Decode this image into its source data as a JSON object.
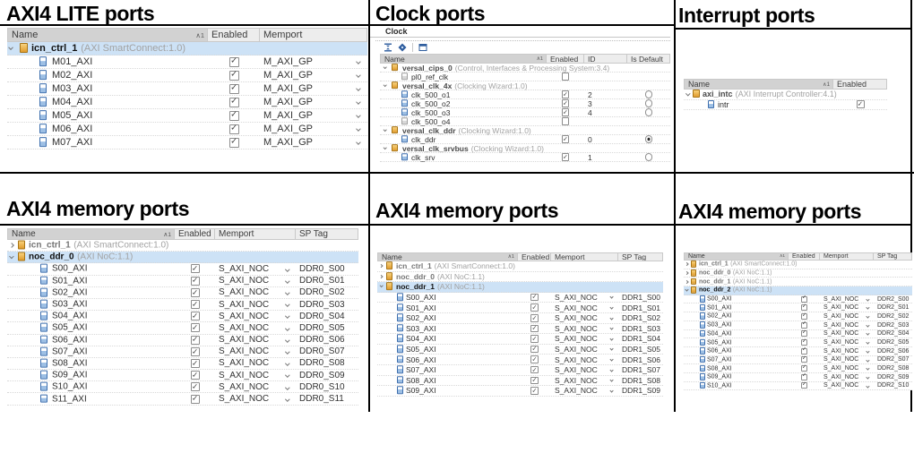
{
  "panels": {
    "lite": {
      "title": "AXI4 LITE ports",
      "columns": [
        "Name",
        "Enabled",
        "Memport"
      ],
      "sort_indicator": "∧1",
      "rows": [
        {
          "type": "group",
          "name": "icn_ctrl_1",
          "detail": "(AXI SmartConnect:1.0)",
          "expanded": true,
          "selected": true
        },
        {
          "type": "port",
          "name": "M01_AXI",
          "enabled": true,
          "memport": "M_AXI_GP"
        },
        {
          "type": "port",
          "name": "M02_AXI",
          "enabled": true,
          "memport": "M_AXI_GP"
        },
        {
          "type": "port",
          "name": "M03_AXI",
          "enabled": true,
          "memport": "M_AXI_GP"
        },
        {
          "type": "port",
          "name": "M04_AXI",
          "enabled": true,
          "memport": "M_AXI_GP"
        },
        {
          "type": "port",
          "name": "M05_AXI",
          "enabled": true,
          "memport": "M_AXI_GP"
        },
        {
          "type": "port",
          "name": "M06_AXI",
          "enabled": true,
          "memport": "M_AXI_GP"
        },
        {
          "type": "port",
          "name": "M07_AXI",
          "enabled": true,
          "memport": "M_AXI_GP"
        }
      ]
    },
    "clock": {
      "title": "Clock ports",
      "tab": "Clock",
      "toolbar_icons": [
        "collapse-all",
        "expand-all",
        "open-new-window"
      ],
      "columns": [
        "Name",
        "Enabled",
        "ID",
        "Is Default"
      ],
      "sort_indicator": "∧1",
      "rows": [
        {
          "type": "group",
          "name": "versal_cips_0",
          "detail": "(Control, Interfaces & Processing System:3.4)",
          "expanded": true
        },
        {
          "type": "port",
          "name": "pl0_ref_clk",
          "enabled": false,
          "id": "",
          "is_default": null,
          "dimmed": true
        },
        {
          "type": "group",
          "name": "versal_clk_4x",
          "detail": "(Clocking Wizard:1.0)",
          "expanded": true
        },
        {
          "type": "port",
          "name": "clk_500_o1",
          "enabled": true,
          "id": "2",
          "is_default": false
        },
        {
          "type": "port",
          "name": "clk_500_o2",
          "enabled": true,
          "id": "3",
          "is_default": false
        },
        {
          "type": "port",
          "name": "clk_500_o3",
          "enabled": true,
          "id": "4",
          "is_default": false
        },
        {
          "type": "port",
          "name": "clk_500_o4",
          "enabled": false,
          "id": "",
          "is_default": null,
          "dimmed": true
        },
        {
          "type": "group",
          "name": "versal_clk_ddr",
          "detail": "(Clocking Wizard:1.0)",
          "expanded": true
        },
        {
          "type": "port",
          "name": "clk_ddr",
          "enabled": true,
          "id": "0",
          "is_default": true
        },
        {
          "type": "group",
          "name": "versal_clk_srvbus",
          "detail": "(Clocking Wizard:1.0)",
          "expanded": true
        },
        {
          "type": "port",
          "name": "clk_srv",
          "enabled": true,
          "id": "1",
          "is_default": false
        }
      ]
    },
    "interrupt": {
      "title": "Interrupt ports",
      "columns": [
        "Name",
        "Enabled"
      ],
      "sort_indicator": "∧1",
      "rows": [
        {
          "type": "group",
          "name": "axi_intc",
          "detail": "(AXI Interrupt Controller:4.1)",
          "expanded": true
        },
        {
          "type": "port",
          "name": "intr",
          "enabled": true
        }
      ]
    },
    "mem0": {
      "title": "AXI4 memory ports",
      "columns": [
        "Name",
        "Enabled",
        "Memport",
        "SP Tag"
      ],
      "sort_indicator": "∧1",
      "rows": [
        {
          "type": "group",
          "name": "icn_ctrl_1",
          "detail": "(AXI SmartConnect:1.0)",
          "expanded": false
        },
        {
          "type": "group",
          "name": "noc_ddr_0",
          "detail": "(AXI NoC:1.1)",
          "expanded": true,
          "selected": true
        },
        {
          "type": "port",
          "name": "S00_AXI",
          "enabled": true,
          "memport": "S_AXI_NOC",
          "sp_tag": "DDR0_S00"
        },
        {
          "type": "port",
          "name": "S01_AXI",
          "enabled": true,
          "memport": "S_AXI_NOC",
          "sp_tag": "DDR0_S01"
        },
        {
          "type": "port",
          "name": "S02_AXI",
          "enabled": true,
          "memport": "S_AXI_NOC",
          "sp_tag": "DDR0_S02"
        },
        {
          "type": "port",
          "name": "S03_AXI",
          "enabled": true,
          "memport": "S_AXI_NOC",
          "sp_tag": "DDR0_S03"
        },
        {
          "type": "port",
          "name": "S04_AXI",
          "enabled": true,
          "memport": "S_AXI_NOC",
          "sp_tag": "DDR0_S04"
        },
        {
          "type": "port",
          "name": "S05_AXI",
          "enabled": true,
          "memport": "S_AXI_NOC",
          "sp_tag": "DDR0_S05"
        },
        {
          "type": "port",
          "name": "S06_AXI",
          "enabled": true,
          "memport": "S_AXI_NOC",
          "sp_tag": "DDR0_S06"
        },
        {
          "type": "port",
          "name": "S07_AXI",
          "enabled": true,
          "memport": "S_AXI_NOC",
          "sp_tag": "DDR0_S07"
        },
        {
          "type": "port",
          "name": "S08_AXI",
          "enabled": true,
          "memport": "S_AXI_NOC",
          "sp_tag": "DDR0_S08"
        },
        {
          "type": "port",
          "name": "S09_AXI",
          "enabled": true,
          "memport": "S_AXI_NOC",
          "sp_tag": "DDR0_S09"
        },
        {
          "type": "port",
          "name": "S10_AXI",
          "enabled": true,
          "memport": "S_AXI_NOC",
          "sp_tag": "DDR0_S10"
        },
        {
          "type": "port",
          "name": "S11_AXI",
          "enabled": true,
          "memport": "S_AXI_NOC",
          "sp_tag": "DDR0_S11"
        }
      ]
    },
    "mem1": {
      "title": "AXI4 memory ports",
      "columns": [
        "Name",
        "Enabled",
        "Memport",
        "SP Tag"
      ],
      "sort_indicator": "∧1",
      "rows": [
        {
          "type": "group",
          "name": "icn_ctrl_1",
          "detail": "(AXI SmartConnect:1.0)",
          "expanded": false
        },
        {
          "type": "group",
          "name": "noc_ddr_0",
          "detail": "(AXI NoC:1.1)",
          "expanded": false
        },
        {
          "type": "group",
          "name": "noc_ddr_1",
          "detail": "(AXI NoC:1.1)",
          "expanded": true,
          "selected": true
        },
        {
          "type": "port",
          "name": "S00_AXI",
          "enabled": true,
          "memport": "S_AXI_NOC",
          "sp_tag": "DDR1_S00"
        },
        {
          "type": "port",
          "name": "S01_AXI",
          "enabled": true,
          "memport": "S_AXI_NOC",
          "sp_tag": "DDR1_S01"
        },
        {
          "type": "port",
          "name": "S02_AXI",
          "enabled": true,
          "memport": "S_AXI_NOC",
          "sp_tag": "DDR1_S02"
        },
        {
          "type": "port",
          "name": "S03_AXI",
          "enabled": true,
          "memport": "S_AXI_NOC",
          "sp_tag": "DDR1_S03"
        },
        {
          "type": "port",
          "name": "S04_AXI",
          "enabled": true,
          "memport": "S_AXI_NOC",
          "sp_tag": "DDR1_S04"
        },
        {
          "type": "port",
          "name": "S05_AXI",
          "enabled": true,
          "memport": "S_AXI_NOC",
          "sp_tag": "DDR1_S05"
        },
        {
          "type": "port",
          "name": "S06_AXI",
          "enabled": true,
          "memport": "S_AXI_NOC",
          "sp_tag": "DDR1_S06"
        },
        {
          "type": "port",
          "name": "S07_AXI",
          "enabled": true,
          "memport": "S_AXI_NOC",
          "sp_tag": "DDR1_S07"
        },
        {
          "type": "port",
          "name": "S08_AXI",
          "enabled": true,
          "memport": "S_AXI_NOC",
          "sp_tag": "DDR1_S08"
        },
        {
          "type": "port",
          "name": "S09_AXI",
          "enabled": true,
          "memport": "S_AXI_NOC",
          "sp_tag": "DDR1_S09"
        }
      ]
    },
    "mem2": {
      "title": "AXI4 memory ports",
      "columns": [
        "Name",
        "Enabled",
        "Memport",
        "SP Tag"
      ],
      "sort_indicator": "∧1",
      "rows": [
        {
          "type": "group",
          "name": "icn_ctrl_1",
          "detail": "(AXI SmartConnect:1.0)",
          "expanded": false
        },
        {
          "type": "group",
          "name": "noc_ddr_0",
          "detail": "(AXI NoC:1.1)",
          "expanded": false
        },
        {
          "type": "group",
          "name": "noc_ddr_1",
          "detail": "(AXI NoC:1.1)",
          "expanded": false
        },
        {
          "type": "group",
          "name": "noc_ddr_2",
          "detail": "(AXI NoC:1.1)",
          "expanded": true,
          "selected": true
        },
        {
          "type": "port",
          "name": "S00_AXI",
          "enabled": true,
          "memport": "S_AXI_NOC",
          "sp_tag": "DDR2_S00"
        },
        {
          "type": "port",
          "name": "S01_AXI",
          "enabled": true,
          "memport": "S_AXI_NOC",
          "sp_tag": "DDR2_S01"
        },
        {
          "type": "port",
          "name": "S02_AXI",
          "enabled": true,
          "memport": "S_AXI_NOC",
          "sp_tag": "DDR2_S02"
        },
        {
          "type": "port",
          "name": "S03_AXI",
          "enabled": true,
          "memport": "S_AXI_NOC",
          "sp_tag": "DDR2_S03"
        },
        {
          "type": "port",
          "name": "S04_AXI",
          "enabled": true,
          "memport": "S_AXI_NOC",
          "sp_tag": "DDR2_S04"
        },
        {
          "type": "port",
          "name": "S05_AXI",
          "enabled": true,
          "memport": "S_AXI_NOC",
          "sp_tag": "DDR2_S05"
        },
        {
          "type": "port",
          "name": "S06_AXI",
          "enabled": true,
          "memport": "S_AXI_NOC",
          "sp_tag": "DDR2_S06"
        },
        {
          "type": "port",
          "name": "S07_AXI",
          "enabled": true,
          "memport": "S_AXI_NOC",
          "sp_tag": "DDR2_S07"
        },
        {
          "type": "port",
          "name": "S08_AXI",
          "enabled": true,
          "memport": "S_AXI_NOC",
          "sp_tag": "DDR2_S08"
        },
        {
          "type": "port",
          "name": "S09_AXI",
          "enabled": true,
          "memport": "S_AXI_NOC",
          "sp_tag": "DDR2_S09"
        },
        {
          "type": "port",
          "name": "S10_AXI",
          "enabled": true,
          "memport": "S_AXI_NOC",
          "sp_tag": "DDR2_S10"
        }
      ]
    }
  }
}
